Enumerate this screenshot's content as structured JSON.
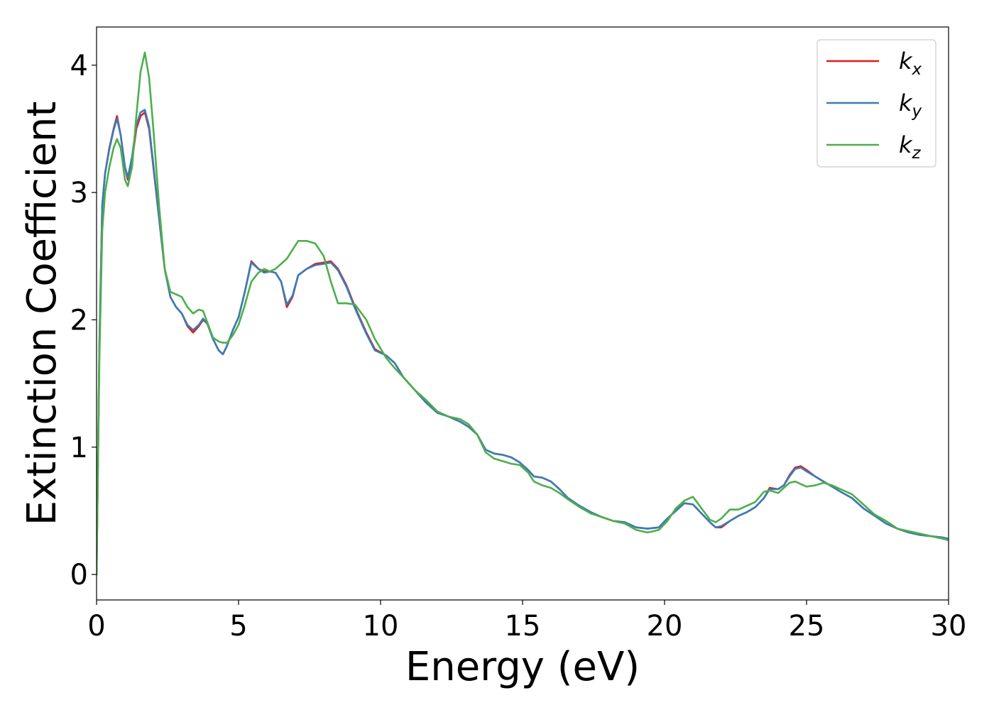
{
  "chart_data": {
    "type": "line",
    "title": "",
    "xlabel": "Energy (eV)",
    "ylabel": "Extinction Coefficient",
    "xlim": [
      0,
      30
    ],
    "ylim": [
      -0.2,
      4.3
    ],
    "xticks": [
      0,
      5,
      10,
      15,
      20,
      25,
      30
    ],
    "yticks": [
      0,
      1,
      2,
      3,
      4
    ],
    "grid": false,
    "legend_position": "top-right",
    "legend": [
      {
        "base": "k",
        "sub": "x"
      },
      {
        "base": "k",
        "sub": "y"
      },
      {
        "base": "k",
        "sub": "z"
      }
    ],
    "series": [
      {
        "name": "k_x",
        "color": "#e41a1c",
        "x": [
          0,
          0.1,
          0.2,
          0.3,
          0.45,
          0.6,
          0.72,
          0.85,
          1.0,
          1.1,
          1.25,
          1.4,
          1.55,
          1.7,
          1.85,
          2.0,
          2.2,
          2.4,
          2.6,
          2.8,
          3.0,
          3.2,
          3.4,
          3.6,
          3.75,
          3.9,
          4.1,
          4.3,
          4.45,
          4.6,
          4.8,
          5.0,
          5.2,
          5.45,
          5.7,
          5.9,
          6.1,
          6.3,
          6.5,
          6.7,
          6.9,
          7.1,
          7.4,
          7.7,
          8.0,
          8.25,
          8.5,
          8.8,
          9.1,
          9.5,
          9.8,
          10.2,
          10.5,
          10.8,
          11.2,
          11.6,
          12.0,
          12.4,
          12.8,
          13.1,
          13.4,
          13.7,
          14.0,
          14.3,
          14.6,
          14.9,
          15.2,
          15.4,
          15.7,
          16.0,
          16.3,
          16.6,
          17.0,
          17.4,
          17.8,
          18.2,
          18.6,
          19.0,
          19.4,
          19.8,
          20.1,
          20.4,
          20.7,
          21.0,
          21.3,
          21.6,
          21.8,
          22.0,
          22.3,
          22.6,
          22.9,
          23.2,
          23.5,
          23.7,
          24.0,
          24.2,
          24.4,
          24.6,
          24.8,
          25.0,
          25.3,
          25.6,
          25.9,
          26.2,
          26.6,
          27.0,
          27.4,
          27.8,
          28.2,
          28.6,
          29.0,
          29.4,
          29.8,
          30.0
        ],
        "y": [
          0.0,
          1.8,
          2.9,
          3.15,
          3.35,
          3.5,
          3.6,
          3.45,
          3.2,
          3.1,
          3.25,
          3.5,
          3.6,
          3.63,
          3.5,
          3.2,
          2.8,
          2.4,
          2.18,
          2.1,
          2.05,
          1.95,
          1.9,
          1.95,
          2.0,
          1.97,
          1.85,
          1.76,
          1.73,
          1.8,
          1.92,
          2.02,
          2.2,
          2.46,
          2.4,
          2.38,
          2.38,
          2.37,
          2.3,
          2.1,
          2.18,
          2.35,
          2.4,
          2.44,
          2.45,
          2.46,
          2.4,
          2.27,
          2.1,
          1.9,
          1.77,
          1.72,
          1.66,
          1.55,
          1.45,
          1.35,
          1.27,
          1.24,
          1.2,
          1.16,
          1.1,
          0.98,
          0.95,
          0.94,
          0.92,
          0.88,
          0.82,
          0.77,
          0.76,
          0.73,
          0.67,
          0.6,
          0.54,
          0.49,
          0.45,
          0.42,
          0.41,
          0.37,
          0.36,
          0.37,
          0.44,
          0.5,
          0.56,
          0.55,
          0.48,
          0.41,
          0.37,
          0.37,
          0.42,
          0.46,
          0.49,
          0.53,
          0.6,
          0.68,
          0.67,
          0.7,
          0.78,
          0.84,
          0.85,
          0.82,
          0.77,
          0.73,
          0.69,
          0.65,
          0.6,
          0.52,
          0.46,
          0.4,
          0.36,
          0.33,
          0.31,
          0.3,
          0.29,
          0.28
        ]
      },
      {
        "name": "k_y",
        "color": "#377eb8",
        "x": [
          0,
          0.1,
          0.2,
          0.3,
          0.45,
          0.6,
          0.72,
          0.85,
          1.0,
          1.1,
          1.25,
          1.4,
          1.55,
          1.7,
          1.85,
          2.0,
          2.2,
          2.4,
          2.6,
          2.8,
          3.0,
          3.2,
          3.4,
          3.6,
          3.75,
          3.9,
          4.1,
          4.3,
          4.45,
          4.6,
          4.8,
          5.0,
          5.2,
          5.45,
          5.7,
          5.9,
          6.1,
          6.3,
          6.5,
          6.7,
          6.9,
          7.1,
          7.4,
          7.7,
          8.0,
          8.25,
          8.5,
          8.8,
          9.1,
          9.5,
          9.8,
          10.2,
          10.5,
          10.8,
          11.2,
          11.6,
          12.0,
          12.4,
          12.8,
          13.1,
          13.4,
          13.7,
          14.0,
          14.3,
          14.6,
          14.9,
          15.2,
          15.4,
          15.7,
          16.0,
          16.3,
          16.6,
          17.0,
          17.4,
          17.8,
          18.2,
          18.6,
          19.0,
          19.4,
          19.8,
          20.1,
          20.4,
          20.7,
          21.0,
          21.3,
          21.6,
          21.8,
          22.0,
          22.3,
          22.6,
          22.9,
          23.2,
          23.5,
          23.7,
          24.0,
          24.2,
          24.4,
          24.6,
          24.8,
          25.0,
          25.3,
          25.6,
          25.9,
          26.2,
          26.6,
          27.0,
          27.4,
          27.8,
          28.2,
          28.6,
          29.0,
          29.4,
          29.8,
          30.0
        ],
        "y": [
          0.0,
          1.8,
          2.9,
          3.15,
          3.34,
          3.49,
          3.58,
          3.45,
          3.2,
          3.12,
          3.28,
          3.53,
          3.63,
          3.65,
          3.52,
          3.22,
          2.8,
          2.4,
          2.18,
          2.1,
          2.05,
          1.96,
          1.92,
          1.96,
          2.01,
          1.97,
          1.85,
          1.76,
          1.73,
          1.8,
          1.92,
          2.02,
          2.2,
          2.45,
          2.4,
          2.37,
          2.38,
          2.37,
          2.3,
          2.12,
          2.19,
          2.35,
          2.4,
          2.43,
          2.44,
          2.45,
          2.39,
          2.26,
          2.09,
          1.89,
          1.76,
          1.72,
          1.66,
          1.55,
          1.45,
          1.35,
          1.27,
          1.24,
          1.2,
          1.16,
          1.1,
          0.98,
          0.95,
          0.94,
          0.92,
          0.88,
          0.82,
          0.77,
          0.76,
          0.73,
          0.67,
          0.6,
          0.54,
          0.49,
          0.45,
          0.42,
          0.41,
          0.37,
          0.36,
          0.37,
          0.44,
          0.5,
          0.56,
          0.55,
          0.48,
          0.41,
          0.37,
          0.38,
          0.42,
          0.46,
          0.49,
          0.53,
          0.6,
          0.67,
          0.67,
          0.7,
          0.77,
          0.83,
          0.84,
          0.81,
          0.77,
          0.73,
          0.69,
          0.65,
          0.6,
          0.52,
          0.46,
          0.4,
          0.36,
          0.33,
          0.31,
          0.3,
          0.29,
          0.28
        ]
      },
      {
        "name": "k_z",
        "color": "#4daf4a",
        "x": [
          0,
          0.1,
          0.2,
          0.3,
          0.45,
          0.6,
          0.72,
          0.85,
          1.0,
          1.1,
          1.25,
          1.4,
          1.55,
          1.7,
          1.85,
          2.0,
          2.2,
          2.4,
          2.6,
          2.8,
          3.0,
          3.2,
          3.4,
          3.6,
          3.75,
          3.9,
          4.1,
          4.3,
          4.45,
          4.6,
          4.8,
          5.0,
          5.2,
          5.45,
          5.7,
          5.9,
          6.1,
          6.3,
          6.5,
          6.7,
          6.9,
          7.1,
          7.4,
          7.7,
          8.0,
          8.25,
          8.5,
          8.8,
          9.1,
          9.5,
          9.8,
          10.2,
          10.5,
          10.8,
          11.2,
          11.6,
          12.0,
          12.4,
          12.8,
          13.1,
          13.4,
          13.7,
          14.0,
          14.3,
          14.6,
          14.9,
          15.2,
          15.4,
          15.7,
          16.0,
          16.3,
          16.6,
          17.0,
          17.4,
          17.8,
          18.2,
          18.6,
          19.0,
          19.4,
          19.8,
          20.1,
          20.4,
          20.7,
          21.0,
          21.3,
          21.6,
          21.8,
          22.0,
          22.3,
          22.6,
          22.9,
          23.2,
          23.5,
          23.7,
          24.0,
          24.2,
          24.4,
          24.6,
          24.8,
          25.0,
          25.3,
          25.6,
          25.9,
          26.2,
          26.6,
          27.0,
          27.4,
          27.8,
          28.2,
          28.6,
          29.0,
          29.4,
          29.8,
          30.0
        ],
        "y": [
          0.0,
          1.7,
          2.7,
          3.0,
          3.2,
          3.35,
          3.42,
          3.35,
          3.1,
          3.05,
          3.2,
          3.6,
          3.95,
          4.1,
          3.9,
          3.5,
          2.9,
          2.4,
          2.22,
          2.2,
          2.18,
          2.1,
          2.05,
          2.08,
          2.07,
          1.98,
          1.86,
          1.83,
          1.82,
          1.82,
          1.88,
          1.96,
          2.1,
          2.3,
          2.37,
          2.4,
          2.38,
          2.4,
          2.44,
          2.48,
          2.55,
          2.62,
          2.62,
          2.6,
          2.5,
          2.3,
          2.13,
          2.13,
          2.12,
          2.0,
          1.85,
          1.7,
          1.62,
          1.55,
          1.45,
          1.37,
          1.28,
          1.24,
          1.22,
          1.18,
          1.1,
          0.96,
          0.91,
          0.89,
          0.87,
          0.86,
          0.8,
          0.73,
          0.7,
          0.68,
          0.64,
          0.59,
          0.53,
          0.48,
          0.45,
          0.42,
          0.4,
          0.35,
          0.33,
          0.35,
          0.42,
          0.52,
          0.58,
          0.61,
          0.52,
          0.43,
          0.41,
          0.44,
          0.51,
          0.51,
          0.54,
          0.57,
          0.65,
          0.66,
          0.64,
          0.68,
          0.72,
          0.73,
          0.71,
          0.69,
          0.7,
          0.72,
          0.7,
          0.67,
          0.63,
          0.55,
          0.47,
          0.42,
          0.36,
          0.34,
          0.32,
          0.3,
          0.28,
          0.27
        ]
      }
    ]
  }
}
